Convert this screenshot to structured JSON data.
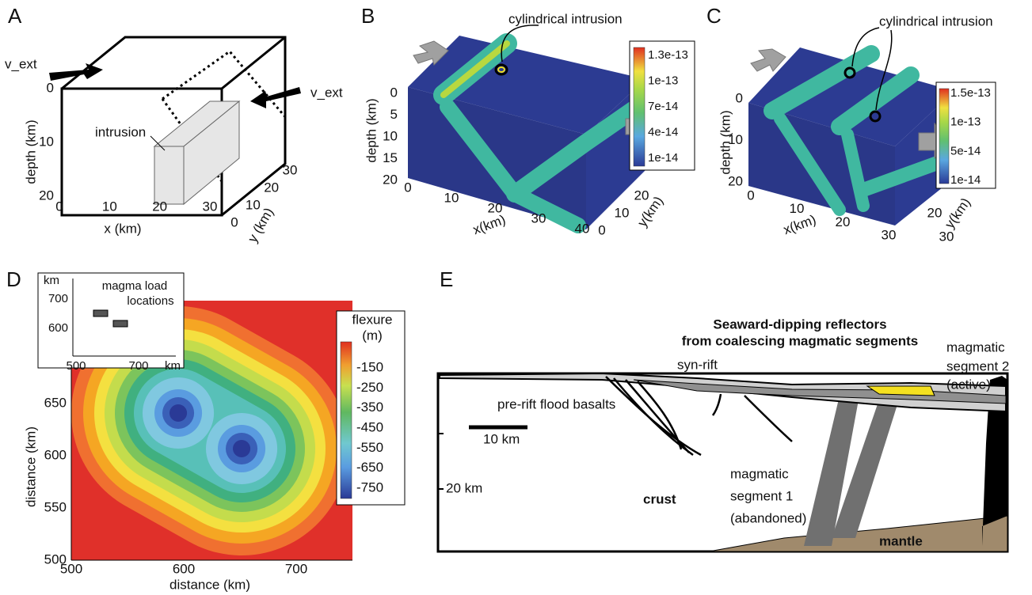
{
  "panels": {
    "a": {
      "letter": "A",
      "v_ext_left": "v_ext",
      "v_ext_right": "v_ext",
      "intrusion": "intrusion",
      "depth_label": "depth (km)",
      "x_label": "x (km)",
      "y_label": "y (km)",
      "depth_ticks": [
        0,
        10,
        20
      ],
      "x_ticks": [
        0,
        10,
        20,
        30
      ],
      "y_ticks": [
        0,
        10,
        20,
        30
      ]
    },
    "b": {
      "letter": "B",
      "annotation": "cylindrical intrusion",
      "colorbar": [
        "1.3e-13",
        "1e-13",
        "7e-14",
        "4e-14",
        "1e-14"
      ],
      "depth_label": "depth (km)",
      "x_label": "x(km)",
      "y_label": "y(km)",
      "depth_ticks": [
        0,
        5,
        10,
        15,
        20
      ],
      "x_ticks": [
        0,
        10,
        20,
        30,
        40
      ],
      "y_ticks": [
        0,
        10,
        20
      ]
    },
    "c": {
      "letter": "C",
      "annotation": "cylindrical intrusion",
      "colorbar": [
        "1.5e-13",
        "1e-13",
        "5e-14",
        "1e-14"
      ],
      "depth_label": "depth (km)",
      "x_label": "x(km)",
      "y_label": "y(km)",
      "depth_ticks": [
        0,
        10,
        20
      ],
      "x_ticks": [
        0,
        10,
        20,
        30
      ],
      "y_ticks": [
        20,
        30
      ]
    },
    "d": {
      "letter": "D",
      "x_label": "distance (km)",
      "y_label": "distance (km)",
      "x_ticks": [
        500,
        600,
        700
      ],
      "y_ticks": [
        500,
        550,
        600,
        650
      ],
      "colorbar_title": [
        "flexure",
        "(m)"
      ],
      "colorbar": [
        -150,
        -250,
        -350,
        -450,
        -550,
        -650,
        -750
      ],
      "inset": {
        "unit": "km",
        "title": [
          "magma load",
          "locations"
        ],
        "y_ticks": [
          700,
          600
        ],
        "x_ticks": [
          500,
          700
        ],
        "x_unit": "km"
      }
    },
    "e": {
      "letter": "E",
      "title": [
        "Seaward-dipping reflectors",
        "from coalescing magmatic segments"
      ],
      "syn_rift": "syn-rift",
      "flood_basalts": "pre-rift flood basalts",
      "segment2": [
        "magmatic",
        "segment 2",
        "(active)"
      ],
      "segment1": [
        "magmatic",
        "segment 1",
        "(abandoned)"
      ],
      "scale": "10 km",
      "depth": "20 km",
      "crust": "crust",
      "mantle": "mantle"
    }
  }
}
